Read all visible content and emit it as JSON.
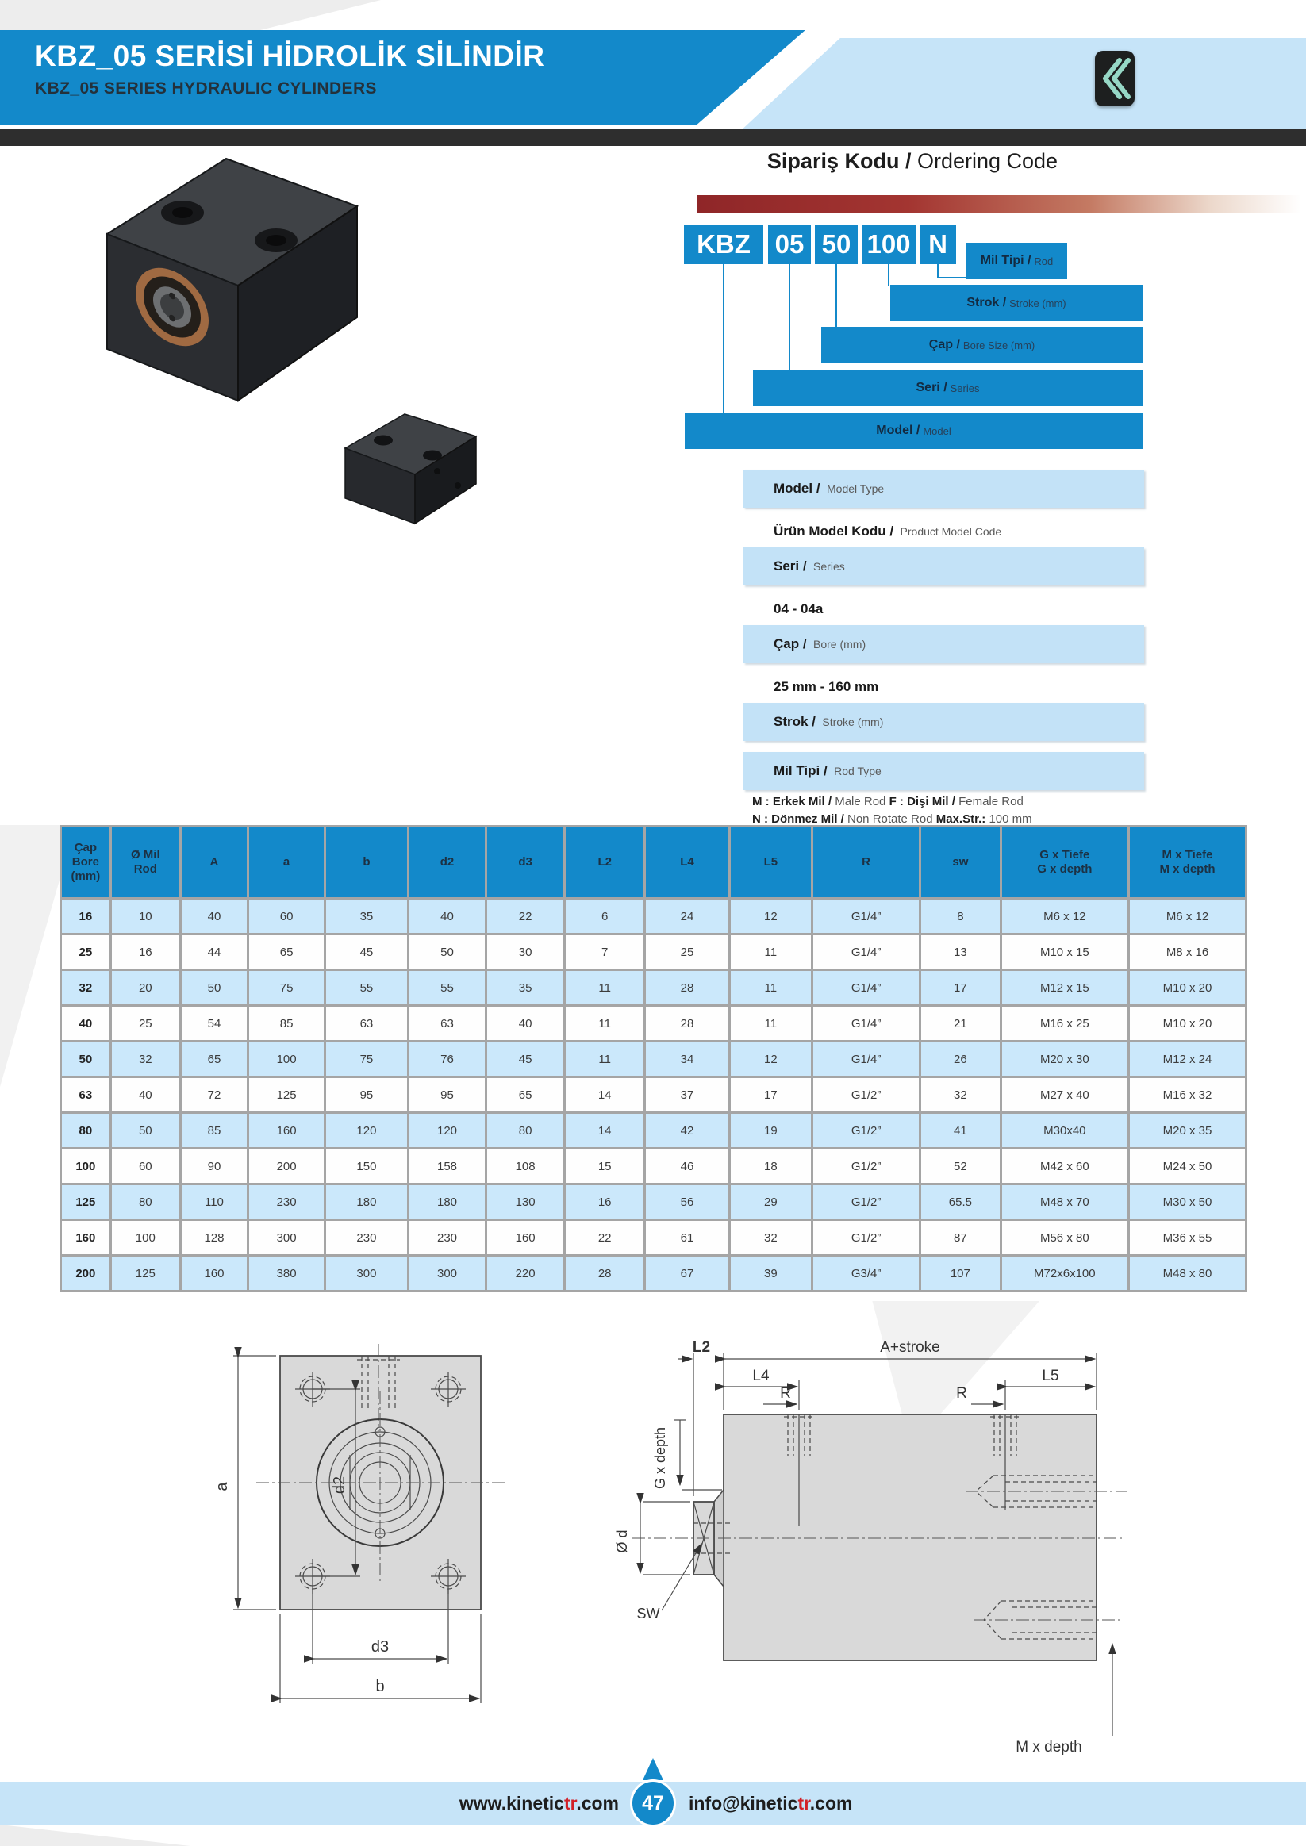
{
  "header": {
    "title_tr": "KBZ_05 SERİSİ HİDROLİK SİLİNDİR",
    "title_en": "KBZ_05 SERIES HYDRAULIC CYLINDERS",
    "logo_icon": "double-chevron-left-icon"
  },
  "ordering": {
    "title_bold": "Sipariş Kodu /",
    "title_rest": " Ordering Code",
    "code_boxes": [
      "KBZ",
      "05",
      "50",
      "100",
      "N"
    ],
    "ladder": [
      {
        "bold": "Mil Tipi /",
        "rest": "Rod"
      },
      {
        "bold": "Strok /",
        "rest": "Stroke (mm)"
      },
      {
        "bold": "Çap /",
        "rest": "Bore Size (mm)"
      },
      {
        "bold": "Seri /",
        "rest": "Series"
      },
      {
        "bold": "Model /",
        "rest": "Model"
      }
    ],
    "info_rows": [
      {
        "bold": "Model /",
        "rest": "Model Type"
      },
      {
        "bold": "Ürün Model Kodu /",
        "rest": "Product Model Code"
      },
      {
        "bold": "Seri /",
        "rest": "Series"
      },
      {
        "bold": "04 - 04a",
        "rest": ""
      },
      {
        "bold": "Çap /",
        "rest": "Bore (mm)"
      },
      {
        "bold": "25 mm - 160 mm",
        "rest": ""
      },
      {
        "bold": "Strok /",
        "rest": "Stroke (mm)"
      },
      {
        "bold": "Mil Tipi /",
        "rest": "Rod Type"
      }
    ],
    "rod_notes": {
      "l1b1": "M : Erkek Mil /",
      "l1r1": " Male Rod   ",
      "l1b2": "F : Dişi Mil /",
      "l1r2": " Female Rod",
      "l2b1": "N : Dönmez Mil /",
      "l2r1": " Non Rotate Rod  ",
      "l2b2": "Max.Str.:",
      "l2r2": " 100 mm"
    }
  },
  "table": {
    "headers": [
      "Çap\nBore\n(mm)",
      "Ø Mil\nRod",
      "A",
      "a",
      "b",
      "d2",
      "d3",
      "L2",
      "L4",
      "L5",
      "R",
      "sw",
      "G x Tiefe\nG x depth",
      "M x Tiefe\nM x depth"
    ],
    "rows": [
      [
        "16",
        "10",
        "40",
        "60",
        "35",
        "40",
        "22",
        "6",
        "24",
        "12",
        "G1/4”",
        "8",
        "M6 x 12",
        "M6 x 12"
      ],
      [
        "25",
        "16",
        "44",
        "65",
        "45",
        "50",
        "30",
        "7",
        "25",
        "11",
        "G1/4”",
        "13",
        "M10 x 15",
        "M8 x 16"
      ],
      [
        "32",
        "20",
        "50",
        "75",
        "55",
        "55",
        "35",
        "11",
        "28",
        "11",
        "G1/4”",
        "17",
        "M12 x 15",
        "M10 x 20"
      ],
      [
        "40",
        "25",
        "54",
        "85",
        "63",
        "63",
        "40",
        "11",
        "28",
        "11",
        "G1/4”",
        "21",
        "M16 x 25",
        "M10 x 20"
      ],
      [
        "50",
        "32",
        "65",
        "100",
        "75",
        "76",
        "45",
        "11",
        "34",
        "12",
        "G1/4”",
        "26",
        "M20 x 30",
        "M12 x 24"
      ],
      [
        "63",
        "40",
        "72",
        "125",
        "95",
        "95",
        "65",
        "14",
        "37",
        "17",
        "G1/2”",
        "32",
        "M27 x 40",
        "M16 x 32"
      ],
      [
        "80",
        "50",
        "85",
        "160",
        "120",
        "120",
        "80",
        "14",
        "42",
        "19",
        "G1/2”",
        "41",
        "M30x40",
        "M20 x 35"
      ],
      [
        "100",
        "60",
        "90",
        "200",
        "150",
        "158",
        "108",
        "15",
        "46",
        "18",
        "G1/2”",
        "52",
        "M42 x 60",
        "M24 x 50"
      ],
      [
        "125",
        "80",
        "110",
        "230",
        "180",
        "180",
        "130",
        "16",
        "56",
        "29",
        "G1/2”",
        "65.5",
        "M48 x 70",
        "M30 x 50"
      ],
      [
        "160",
        "100",
        "128",
        "300",
        "230",
        "230",
        "160",
        "22",
        "61",
        "32",
        "G1/2”",
        "87",
        "M56 x 80",
        "M36 x 55"
      ],
      [
        "200",
        "125",
        "160",
        "380",
        "300",
        "300",
        "220",
        "28",
        "67",
        "39",
        "G3/4”",
        "107",
        "M72x6x100",
        "M48 x 80"
      ]
    ]
  },
  "drawings": {
    "front": {
      "a": "a",
      "d2": "d2",
      "d3": "d3",
      "b": "b"
    },
    "side": {
      "l2": "L2",
      "a_stroke": "A+stroke",
      "l4": "L4",
      "l5": "L5",
      "r1": "R",
      "r2": "R",
      "g_depth": "G x depth",
      "dia_d": "Ø d",
      "sw": "SW",
      "m_depth": "M x depth"
    }
  },
  "footer": {
    "web_pre": "www.kinetic",
    "web_accent": "tr",
    "web_post": ".com",
    "page": "47",
    "email_pre": "info@kinetic",
    "email_accent": "tr",
    "email_post": ".com"
  }
}
